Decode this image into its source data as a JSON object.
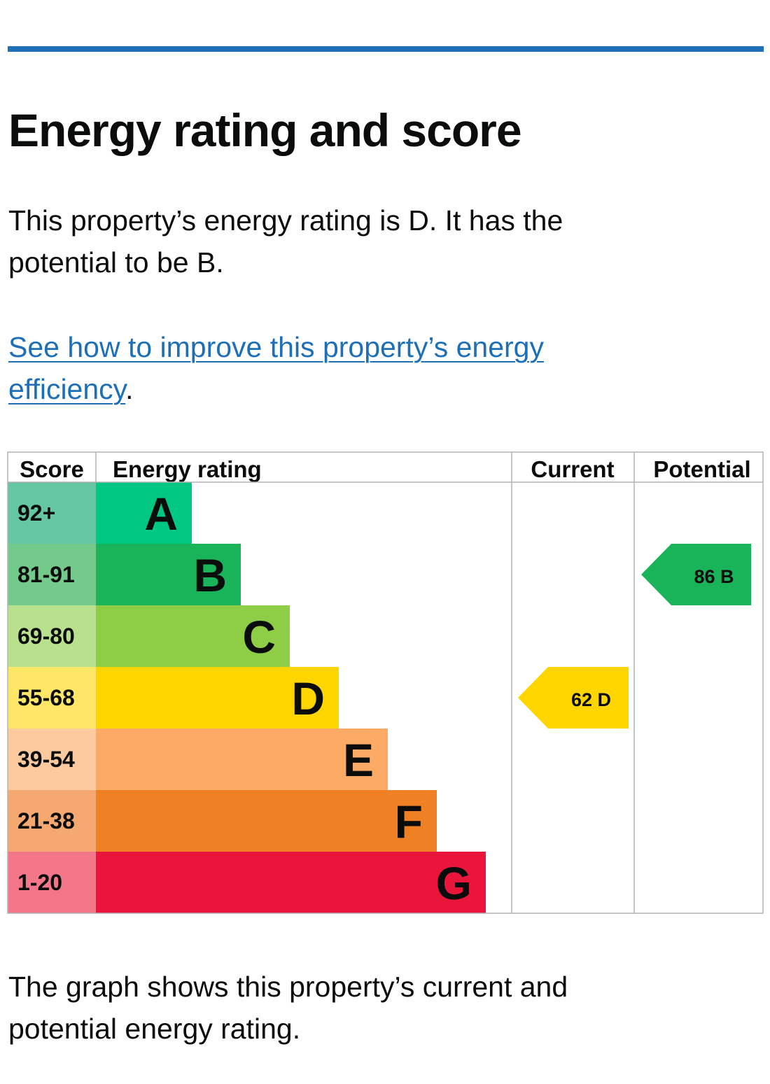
{
  "title": "Energy rating and score",
  "intro": "This property’s energy rating is D. It has the potential to be B.",
  "link_text": "See how to improve this property’s energy efficiency",
  "link_suffix": ".",
  "footer_text": "The graph shows this property’s current and potential energy rating.",
  "colors": {
    "accent": "#1d70b8",
    "link": "#1d70b8"
  },
  "chart_data": {
    "type": "bar",
    "title": "Energy rating and score",
    "headers": [
      "Score",
      "Energy rating",
      "Current",
      "Potential"
    ],
    "bands": [
      {
        "letter": "A",
        "range": "92+",
        "color": "#00c781",
        "score_color": "#64c7a1"
      },
      {
        "letter": "B",
        "range": "81-91",
        "color": "#19b459",
        "score_color": "#73ca8b"
      },
      {
        "letter": "C",
        "range": "69-80",
        "color": "#8dce46",
        "score_color": "#b9e08c"
      },
      {
        "letter": "D",
        "range": "55-68",
        "color": "#ffd500",
        "score_color": "#ffe666"
      },
      {
        "letter": "E",
        "range": "39-54",
        "color": "#fcaa65",
        "score_color": "#fdc99e"
      },
      {
        "letter": "F",
        "range": "21-38",
        "color": "#ef8023",
        "score_color": "#f5a970"
      },
      {
        "letter": "G",
        "range": "1-20",
        "color": "#e9153b",
        "score_color": "#f37689"
      }
    ],
    "current": {
      "score": 62,
      "rating": "D",
      "label": "62  D"
    },
    "potential": {
      "score": 86,
      "rating": "B",
      "label": "86  B"
    }
  }
}
